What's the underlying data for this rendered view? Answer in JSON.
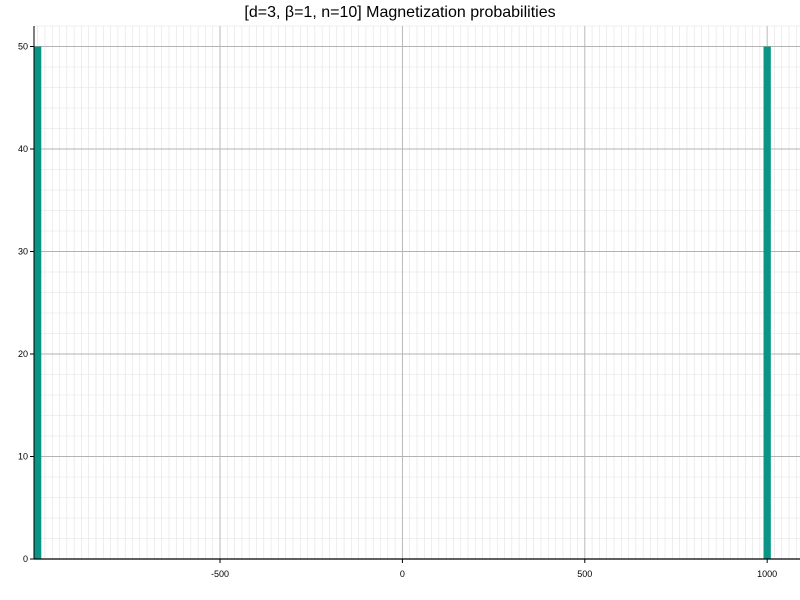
{
  "chart_data": {
    "type": "bar",
    "title": "[d=3, β=1, n=10] Magnetization probabilities",
    "xlabel": "",
    "ylabel": "",
    "x": [
      -1000,
      1000
    ],
    "values": [
      50,
      50
    ],
    "bar_width": 20,
    "xlim": [
      -1010,
      1090
    ],
    "ylim": [
      0,
      52
    ],
    "xticks": [
      -500,
      0,
      500,
      1000
    ],
    "xtick_labels": [
      "-500",
      "0",
      "500",
      "1000"
    ],
    "yticks": [
      0,
      10,
      20,
      30,
      40,
      50
    ],
    "ytick_labels": [
      "0",
      "10",
      "20",
      "30",
      "40",
      "50"
    ],
    "x_minor_step": 20,
    "y_minor_step": 2,
    "grid": true,
    "legend": "none",
    "colors": {
      "bar": "#0a9486",
      "major_grid": "#b3b3b3",
      "minor_grid": "#e2e2e2",
      "axis": "#000000"
    }
  }
}
